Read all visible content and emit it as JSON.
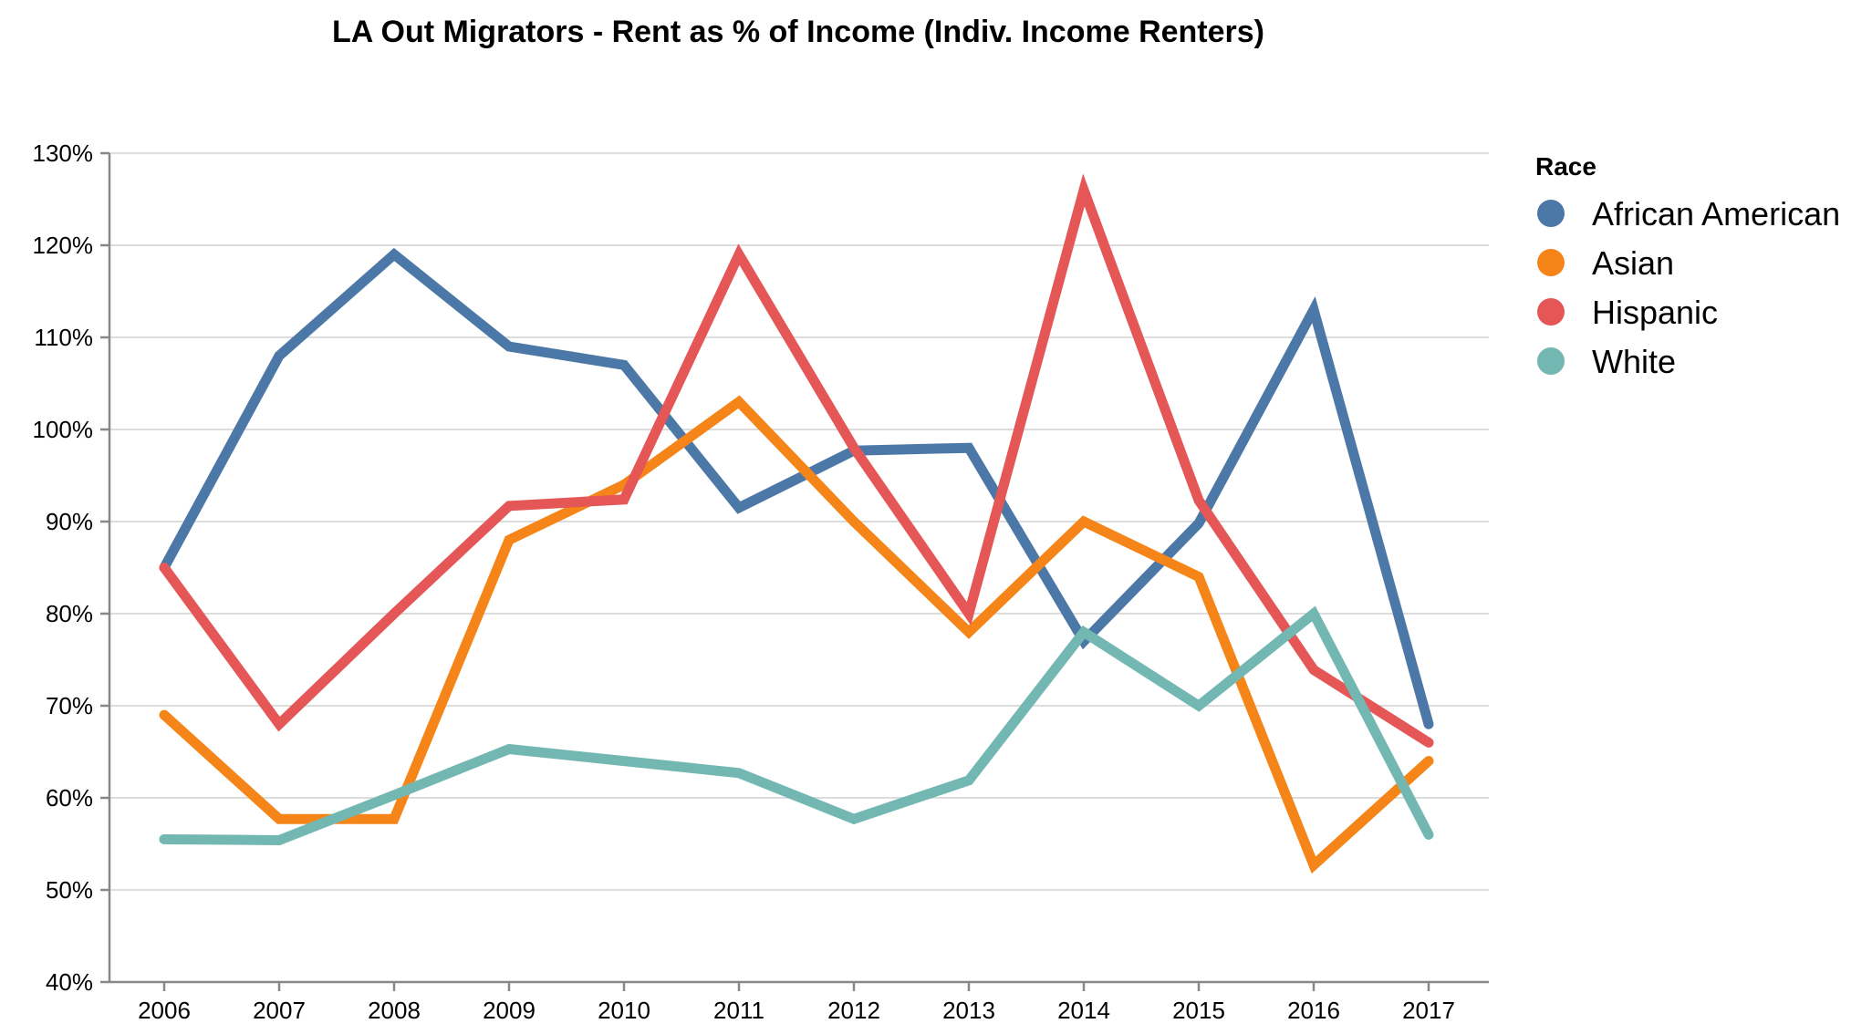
{
  "chart_data": {
    "type": "line",
    "title": "LA Out Migrators - Rent as % of Income (Indiv. Income Renters)",
    "xlabel": "",
    "ylabel": "",
    "x": [
      "2006",
      "2007",
      "2008",
      "2009",
      "2010",
      "2011",
      "2012",
      "2013",
      "2014",
      "2015",
      "2016",
      "2017"
    ],
    "ylim": [
      40,
      130
    ],
    "yticks": [
      40,
      50,
      60,
      70,
      80,
      90,
      100,
      110,
      120,
      130
    ],
    "ytick_labels": [
      "40%",
      "50%",
      "60%",
      "70%",
      "80%",
      "90%",
      "100%",
      "110%",
      "120%",
      "130%"
    ],
    "grid": true,
    "legend": {
      "title": "Race",
      "position": "right"
    },
    "series": [
      {
        "name": "African American",
        "color": "#4c78a8",
        "values": [
          85,
          108,
          119,
          109,
          107,
          91.5,
          97.7,
          98,
          77,
          89.8,
          113,
          68
        ]
      },
      {
        "name": "Asian",
        "color": "#f58518",
        "values": [
          69,
          57.7,
          57.7,
          88,
          94,
          103,
          90,
          78,
          90,
          84,
          52.7,
          64
        ]
      },
      {
        "name": "Hispanic",
        "color": "#e45756",
        "values": [
          85,
          68,
          80,
          91.7,
          92.4,
          119,
          98,
          80,
          126,
          92.3,
          73.9,
          66
        ]
      },
      {
        "name": "White",
        "color": "#72b7b2",
        "values": [
          55.5,
          55.4,
          60.3,
          65.3,
          64,
          62.7,
          57.7,
          61.9,
          78,
          70,
          80,
          56
        ]
      }
    ]
  }
}
